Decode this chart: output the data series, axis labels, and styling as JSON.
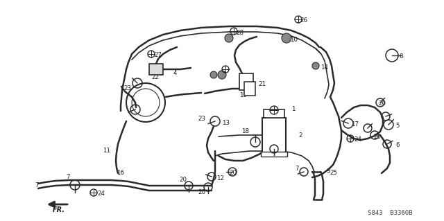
{
  "bg_color": "#ffffff",
  "line_color": "#2a2a2a",
  "text_color": "#1a1a1a",
  "figsize": [
    6.4,
    3.19
  ],
  "dpi": 100,
  "watermark": "S843  B3360B",
  "fr_label": "FR."
}
